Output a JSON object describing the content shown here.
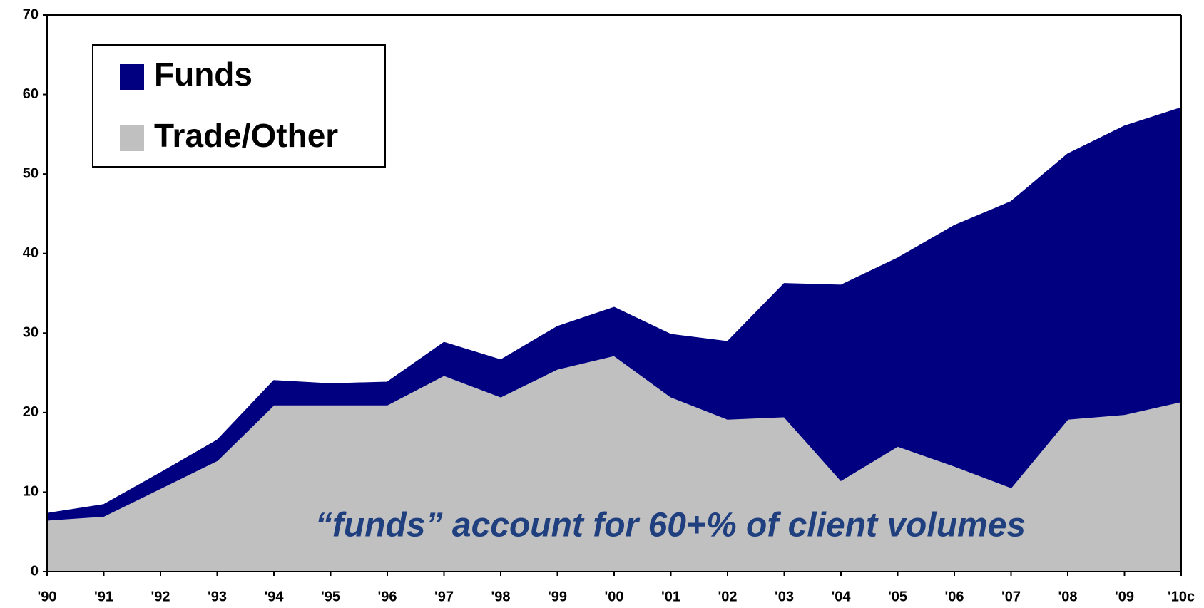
{
  "chart_data": {
    "type": "stacked_area",
    "categories": [
      "'90",
      "'91",
      "'92",
      "'93",
      "'94",
      "'95",
      "'96",
      "'97",
      "'98",
      "'99",
      "'00",
      "'01",
      "'02",
      "'03",
      "'04",
      "'05",
      "'06",
      "'07",
      "'08",
      "'09",
      "'10c"
    ],
    "series": [
      {
        "name": "Trade/Other",
        "color": "#c0c0c0",
        "values": [
          6.5,
          7,
          10.5,
          14,
          21,
          21,
          21,
          24.7,
          22,
          25.5,
          27.2,
          22,
          19.2,
          19.5,
          11.5,
          15.8,
          13.3,
          10.6,
          19.2,
          19.8,
          21.4
        ]
      },
      {
        "name": "Funds",
        "color": "#000080",
        "values": [
          0.8,
          1.4,
          1.9,
          2.5,
          3.0,
          2.6,
          2.8,
          4.1,
          4.6,
          5.3,
          6.0,
          7.8,
          9.7,
          16.7,
          24.5,
          23.6,
          30.2,
          35.9,
          33.3,
          36.2,
          36.9
        ]
      }
    ],
    "ylim": [
      0,
      70
    ],
    "yticks": [
      0,
      10,
      20,
      30,
      40,
      50,
      60,
      70
    ],
    "annotation": "“funds” account for 60+% of client volumes",
    "legend": "top-left",
    "grid": false
  }
}
